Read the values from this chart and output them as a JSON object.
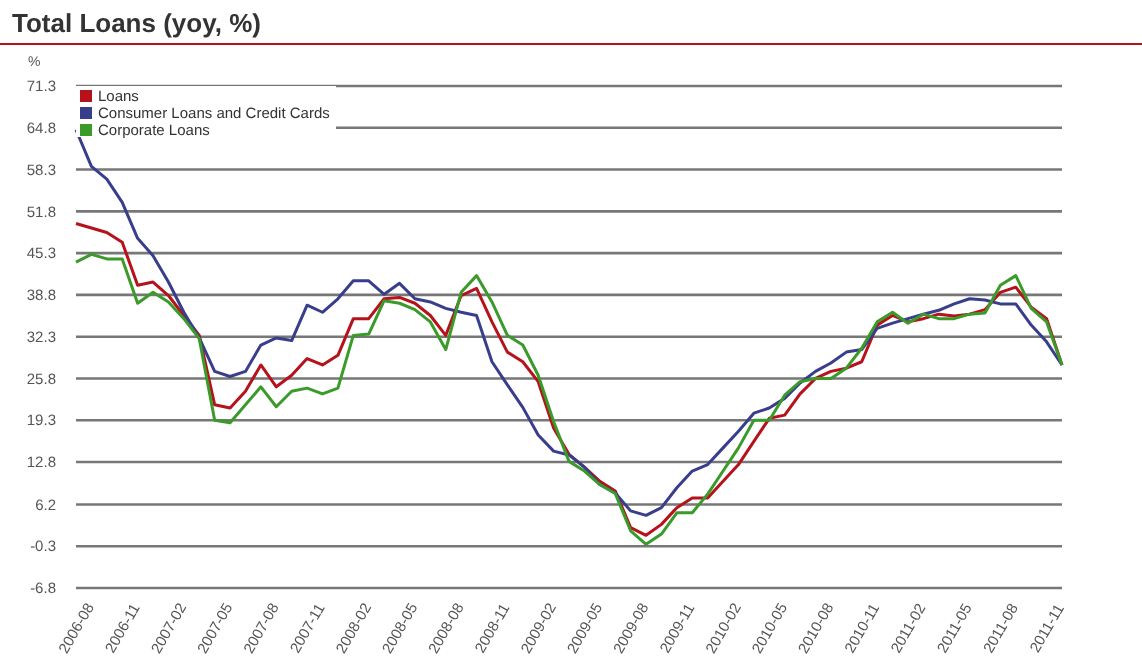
{
  "chart_data": {
    "type": "line",
    "title": "Total Loans (yoy, %)",
    "ylabel": "%",
    "categories": [
      "2006-08",
      null,
      null,
      "2006-11",
      null,
      null,
      "2007-02",
      null,
      null,
      "2007-05",
      null,
      null,
      "2007-08",
      null,
      null,
      "2007-11",
      null,
      null,
      "2008-02",
      null,
      null,
      "2008-05",
      null,
      null,
      "2008-08",
      null,
      null,
      "2008-11",
      null,
      null,
      "2009-02",
      null,
      null,
      "2009-05",
      null,
      null,
      "2009-08",
      null,
      null,
      "2009-11",
      null,
      null,
      "2010-02",
      null,
      null,
      "2010-05",
      null,
      null,
      "2010-08",
      null,
      null,
      "2010-11",
      null,
      null,
      "2011-02",
      null,
      null,
      "2011-05",
      null,
      null,
      "2011-08",
      null,
      null,
      "2011-11",
      null
    ],
    "series": [
      {
        "name": "Loans",
        "color": "#b5121b",
        "values": [
          49.9,
          49.2,
          48.5,
          47.0,
          40.3,
          40.8,
          38.7,
          35.6,
          32.5,
          21.7,
          21.2,
          23.8,
          27.9,
          24.5,
          26.3,
          28.9,
          27.9,
          29.4,
          35.1,
          35.1,
          38.2,
          38.4,
          37.5,
          35.6,
          32.5,
          38.7,
          39.8,
          34.6,
          29.9,
          28.4,
          25.3,
          18.1,
          14.0,
          12.0,
          9.8,
          8.3,
          2.6,
          1.4,
          3.1,
          5.7,
          7.2,
          7.2,
          9.8,
          12.4,
          16.0,
          19.6,
          20.1,
          23.4,
          25.8,
          26.9,
          27.4,
          28.4,
          34.1,
          35.6,
          34.6,
          35.1,
          35.8,
          35.5,
          35.8,
          36.5,
          39.2,
          40.0,
          36.9,
          35.1,
          27.9
        ]
      },
      {
        "name": "Consumer Loans and Credit Cards",
        "color": "#383e8c",
        "values": [
          64.5,
          58.8,
          56.8,
          53.2,
          47.6,
          44.9,
          40.8,
          36.1,
          32.1,
          26.9,
          26.1,
          26.9,
          31.0,
          32.1,
          31.7,
          37.2,
          36.1,
          38.2,
          41.0,
          41.0,
          38.9,
          40.6,
          38.2,
          37.7,
          36.7,
          36.1,
          35.6,
          28.4,
          24.8,
          21.3,
          17.0,
          14.5,
          13.9,
          12.0,
          9.3,
          8.0,
          5.2,
          4.5,
          5.7,
          8.8,
          11.4,
          12.4,
          15.0,
          17.6,
          20.4,
          21.2,
          22.7,
          25.1,
          26.9,
          28.2,
          29.9,
          30.3,
          33.6,
          34.4,
          35.1,
          35.8,
          36.4,
          37.4,
          38.2,
          38.0,
          37.4,
          37.4,
          34.1,
          31.5,
          27.9
        ]
      },
      {
        "name": "Corporate Loans",
        "color": "#3a9a2a",
        "values": [
          43.9,
          45.1,
          44.4,
          44.4,
          37.5,
          39.2,
          37.7,
          35.1,
          32.0,
          19.3,
          18.9,
          21.7,
          24.5,
          21.4,
          23.8,
          24.3,
          23.4,
          24.3,
          32.5,
          32.7,
          37.9,
          37.5,
          36.5,
          34.6,
          30.3,
          39.2,
          41.8,
          37.7,
          32.5,
          31.0,
          26.3,
          19.1,
          12.9,
          11.4,
          9.3,
          7.9,
          2.1,
          0.0,
          1.6,
          4.9,
          4.9,
          7.8,
          11.4,
          15.0,
          19.3,
          19.3,
          23.2,
          25.3,
          25.8,
          25.8,
          27.4,
          30.5,
          34.6,
          36.1,
          34.4,
          35.8,
          35.1,
          35.1,
          35.8,
          36.0,
          40.3,
          41.8,
          36.7,
          34.6,
          27.9
        ]
      }
    ],
    "ylim": [
      -6.8,
      71.3
    ],
    "yticks": [
      71.3,
      64.8,
      58.3,
      51.8,
      45.3,
      38.8,
      32.3,
      25.8,
      19.3,
      12.8,
      6.2,
      -0.3,
      -6.8
    ],
    "grid": "y",
    "legend": "top left",
    "marker": "none",
    "line_style": "solid"
  }
}
